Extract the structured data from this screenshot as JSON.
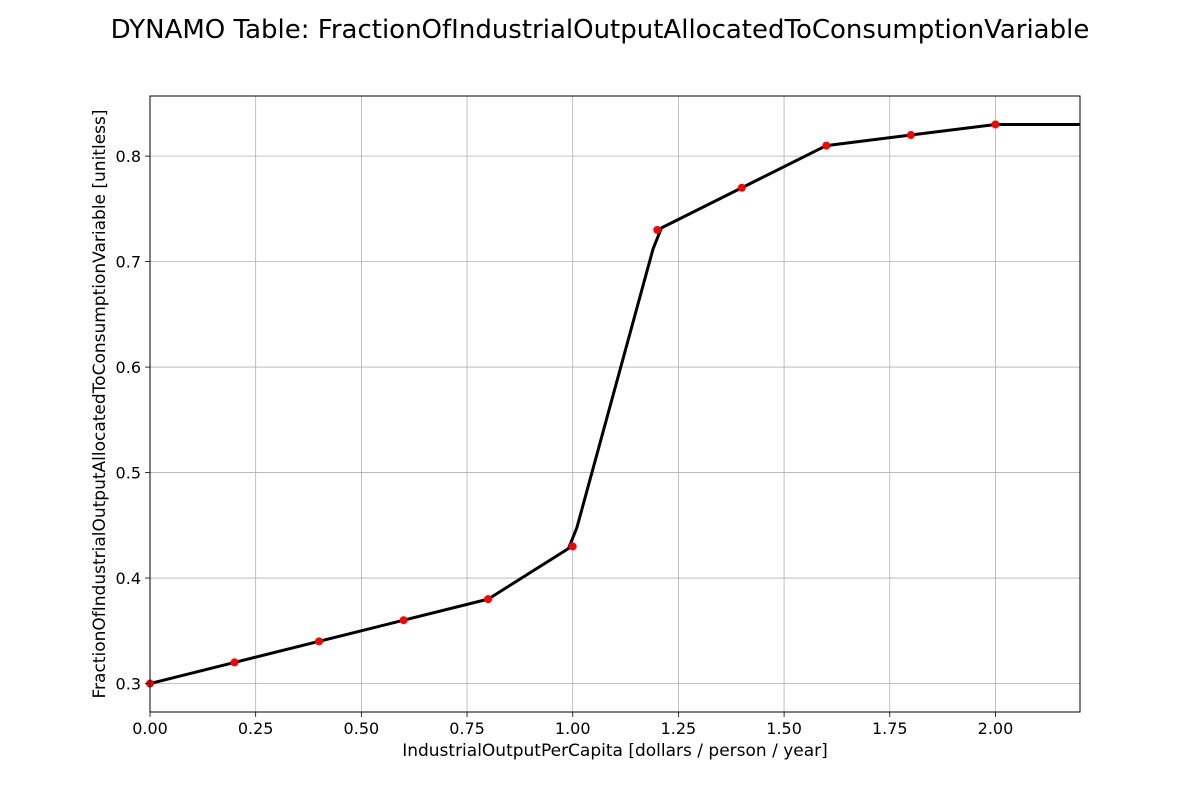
{
  "chart_data": {
    "type": "line",
    "title": "DYNAMO Table: FractionOfIndustrialOutputAllocatedToConsumptionVariable",
    "xlabel": "IndustrialOutputPerCapita [dollars / person / year]",
    "ylabel": "FractionOfIndustrialOutputAllocatedToConsumptionVariable [unitless]",
    "xlim": [
      0,
      2.2
    ],
    "ylim": [
      0.273,
      0.857
    ],
    "grid": true,
    "x_ticks": [
      0,
      0.25,
      0.5,
      0.75,
      1.0,
      1.25,
      1.5,
      1.75,
      2.0
    ],
    "x_tick_labels": [
      "0.00",
      "0.25",
      "0.50",
      "0.75",
      "1.00",
      "1.25",
      "1.50",
      "1.75",
      "2.00"
    ],
    "y_ticks": [
      0.3,
      0.4,
      0.5,
      0.6,
      0.7,
      0.8
    ],
    "y_tick_labels": [
      "0.3",
      "0.4",
      "0.5",
      "0.6",
      "0.7",
      "0.8"
    ],
    "series": [
      {
        "style": "line",
        "color": "#000000",
        "x": [
          0,
          0.2,
          0.4,
          0.6,
          0.8,
          0.99,
          1.01,
          1.19,
          1.21,
          1.4,
          1.6,
          1.8,
          2.0,
          2.2
        ],
        "y": [
          0.3,
          0.32,
          0.34,
          0.36,
          0.38,
          0.428,
          0.448,
          0.712,
          0.732,
          0.77,
          0.81,
          0.82,
          0.83,
          0.83
        ]
      },
      {
        "style": "points",
        "color": "#ff0000",
        "x": [
          0,
          0.2,
          0.4,
          0.6,
          0.8,
          1.0,
          1.2,
          1.4,
          1.6,
          1.8,
          2.0
        ],
        "y": [
          0.3,
          0.32,
          0.34,
          0.36,
          0.38,
          0.43,
          0.73,
          0.77,
          0.81,
          0.82,
          0.83
        ]
      }
    ]
  }
}
